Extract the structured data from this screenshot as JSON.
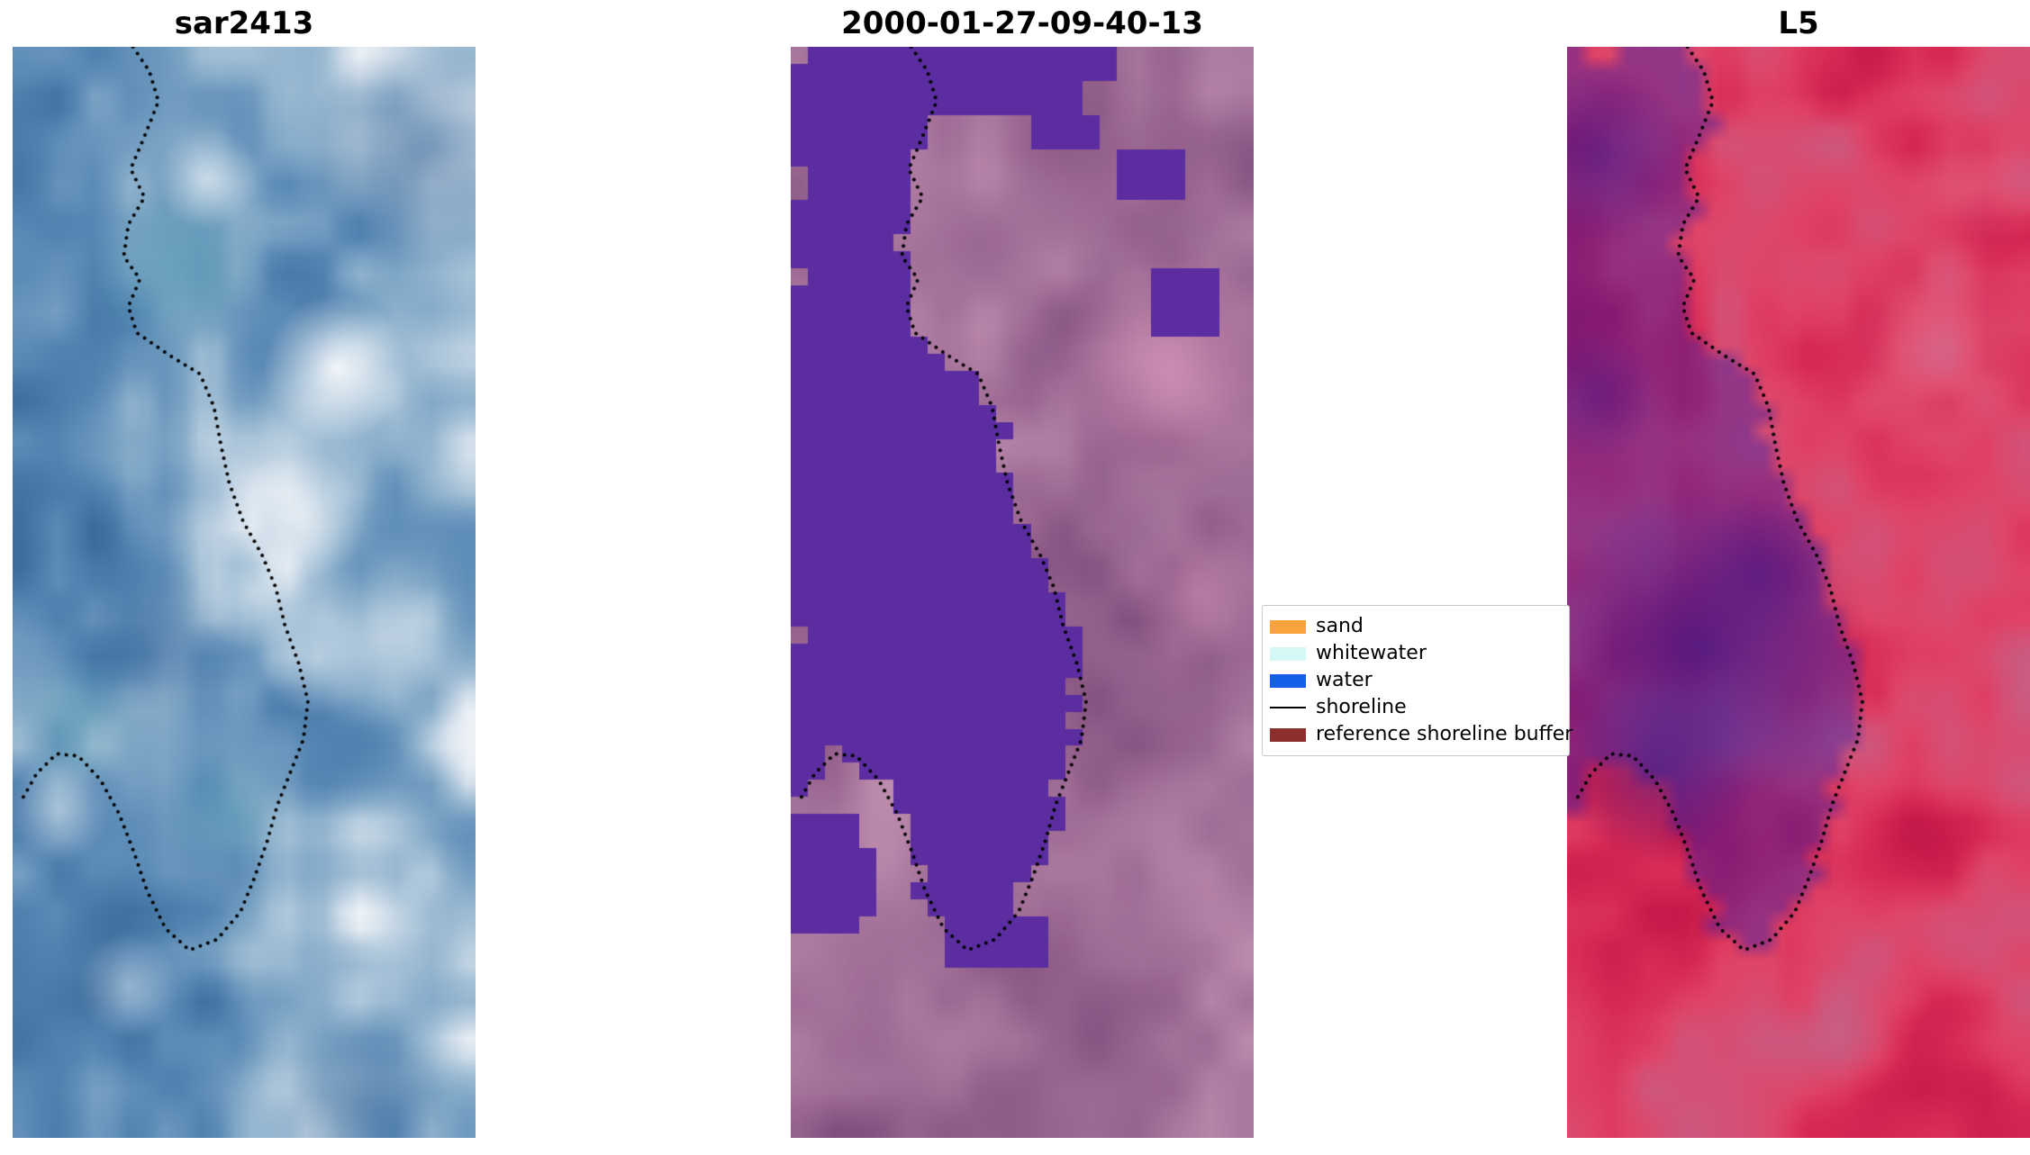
{
  "figure": {
    "background": "#ffffff"
  },
  "chart_data": {
    "type": "image",
    "description": "Three-panel satellite shoreline-mapping figure: SAR image, classified optical image, and Landsat-5 false-colour image, each overlaid with the same dotted shoreline.",
    "panels": [
      {
        "title": "sar2413",
        "kind": "sar-backscatter-image",
        "palette": [
          "#2d5c91",
          "#40709f",
          "#5586b3",
          "#7ba4c5",
          "#aac4d9",
          "#e9eff5",
          "#ffffff"
        ],
        "teal_spots": [
          [
            0.36,
            0.2,
            0.12,
            0.35
          ],
          [
            0.14,
            0.62,
            0.09,
            0.3
          ],
          [
            0.46,
            0.7,
            0.09,
            0.25
          ]
        ],
        "teal_color": "#3f95a6",
        "highlights": [
          [
            0.7,
            0.295,
            0.1,
            0.9
          ],
          [
            0.62,
            0.43,
            0.09,
            0.6
          ],
          [
            0.52,
            0.5,
            0.08,
            0.5
          ],
          [
            0.42,
            0.12,
            0.07,
            0.5
          ],
          [
            0.66,
            0.56,
            0.08,
            0.45
          ],
          [
            0.1,
            0.7,
            0.07,
            0.4
          ],
          [
            0.25,
            0.86,
            0.07,
            0.35
          ]
        ],
        "highlight_color": "#ffffff",
        "dark_spots": [
          [
            0.88,
            0.1,
            0.16,
            0.35
          ],
          [
            0.3,
            0.55,
            0.12,
            0.25
          ],
          [
            0.75,
            0.97,
            0.12,
            0.3
          ]
        ],
        "dark_color": "#274f86"
      },
      {
        "title": "2000-01-27-09-40-13",
        "kind": "classified-image",
        "water_color": "#5b2da0",
        "land_palette": [
          "#7c4a79",
          "#94608c",
          "#a5729a",
          "#b886a9",
          "#c998b6"
        ],
        "pink_blobs": [
          [
            0.82,
            0.3,
            0.16,
            0.7
          ],
          [
            0.88,
            0.5,
            0.1,
            0.45
          ]
        ],
        "pink_color": "#d795b8",
        "dark_blobs": [
          [
            0.5,
            0.96,
            0.3,
            0.3
          ]
        ],
        "dark_color": "#6d3f6d",
        "water_patches": [
          [
            0.25,
            0.0,
            0.47,
            0.038
          ],
          [
            0.28,
            0.038,
            0.36,
            0.03
          ],
          [
            0.52,
            0.068,
            0.14,
            0.03
          ],
          [
            0.7,
            0.095,
            0.14,
            0.04
          ],
          [
            0.78,
            0.21,
            0.14,
            0.048
          ],
          [
            0.0,
            0.7,
            0.14,
            0.11
          ],
          [
            0.06,
            0.74,
            0.12,
            0.05
          ],
          [
            0.34,
            0.8,
            0.2,
            0.045
          ]
        ]
      },
      {
        "title": "L5",
        "kind": "false-colour-satellite-image",
        "palette": [
          "#b01140",
          "#c51a4a",
          "#d62853",
          "#e04466",
          "#d2537a",
          "#c76285"
        ],
        "water_tint": "#3d1fa5",
        "water_tint_alpha": 0.45,
        "dark_blobs": [
          [
            0.3,
            0.55,
            0.22,
            0.55
          ],
          [
            0.2,
            0.66,
            0.13,
            0.5
          ],
          [
            0.07,
            0.1,
            0.12,
            0.4
          ],
          [
            0.06,
            0.32,
            0.09,
            0.35
          ],
          [
            0.42,
            0.48,
            0.1,
            0.35
          ]
        ],
        "dark_color": "#341a8c",
        "pink_blobs": [
          [
            0.8,
            0.27,
            0.15,
            0.35
          ],
          [
            0.88,
            0.13,
            0.1,
            0.3
          ]
        ],
        "pink_color": "#e87f9a"
      }
    ],
    "legend": {
      "entries": [
        {
          "label": "sand",
          "type": "patch",
          "color": "#f9a33f"
        },
        {
          "label": "whitewater",
          "type": "patch",
          "color": "#d3f8f6"
        },
        {
          "label": "water",
          "type": "patch",
          "color": "#155ee8"
        },
        {
          "label": "shoreline",
          "type": "line",
          "color": "#000000"
        },
        {
          "label": "reference shoreline buffer",
          "type": "patch",
          "color": "#8b2f2f"
        }
      ]
    },
    "shoreline": {
      "color": "#000000",
      "linestyle": "dotted",
      "points_rel": [
        [
          0.26,
          0.0
        ],
        [
          0.295,
          0.022
        ],
        [
          0.315,
          0.05
        ],
        [
          0.285,
          0.082
        ],
        [
          0.255,
          0.112
        ],
        [
          0.285,
          0.138
        ],
        [
          0.25,
          0.163
        ],
        [
          0.24,
          0.192
        ],
        [
          0.275,
          0.213
        ],
        [
          0.25,
          0.238
        ],
        [
          0.268,
          0.262
        ],
        [
          0.34,
          0.283
        ],
        [
          0.405,
          0.3
        ],
        [
          0.435,
          0.33
        ],
        [
          0.45,
          0.365
        ],
        [
          0.468,
          0.4
        ],
        [
          0.498,
          0.435
        ],
        [
          0.538,
          0.465
        ],
        [
          0.568,
          0.495
        ],
        [
          0.588,
          0.53
        ],
        [
          0.618,
          0.565
        ],
        [
          0.638,
          0.6
        ],
        [
          0.628,
          0.635
        ],
        [
          0.6,
          0.665
        ],
        [
          0.572,
          0.695
        ],
        [
          0.55,
          0.728
        ],
        [
          0.522,
          0.762
        ],
        [
          0.492,
          0.793
        ],
        [
          0.442,
          0.818
        ],
        [
          0.382,
          0.828
        ],
        [
          0.33,
          0.808
        ],
        [
          0.29,
          0.773
        ],
        [
          0.262,
          0.738
        ],
        [
          0.23,
          0.703
        ],
        [
          0.19,
          0.672
        ],
        [
          0.142,
          0.65
        ],
        [
          0.095,
          0.648
        ],
        [
          0.052,
          0.666
        ],
        [
          0.02,
          0.69
        ]
      ]
    }
  }
}
